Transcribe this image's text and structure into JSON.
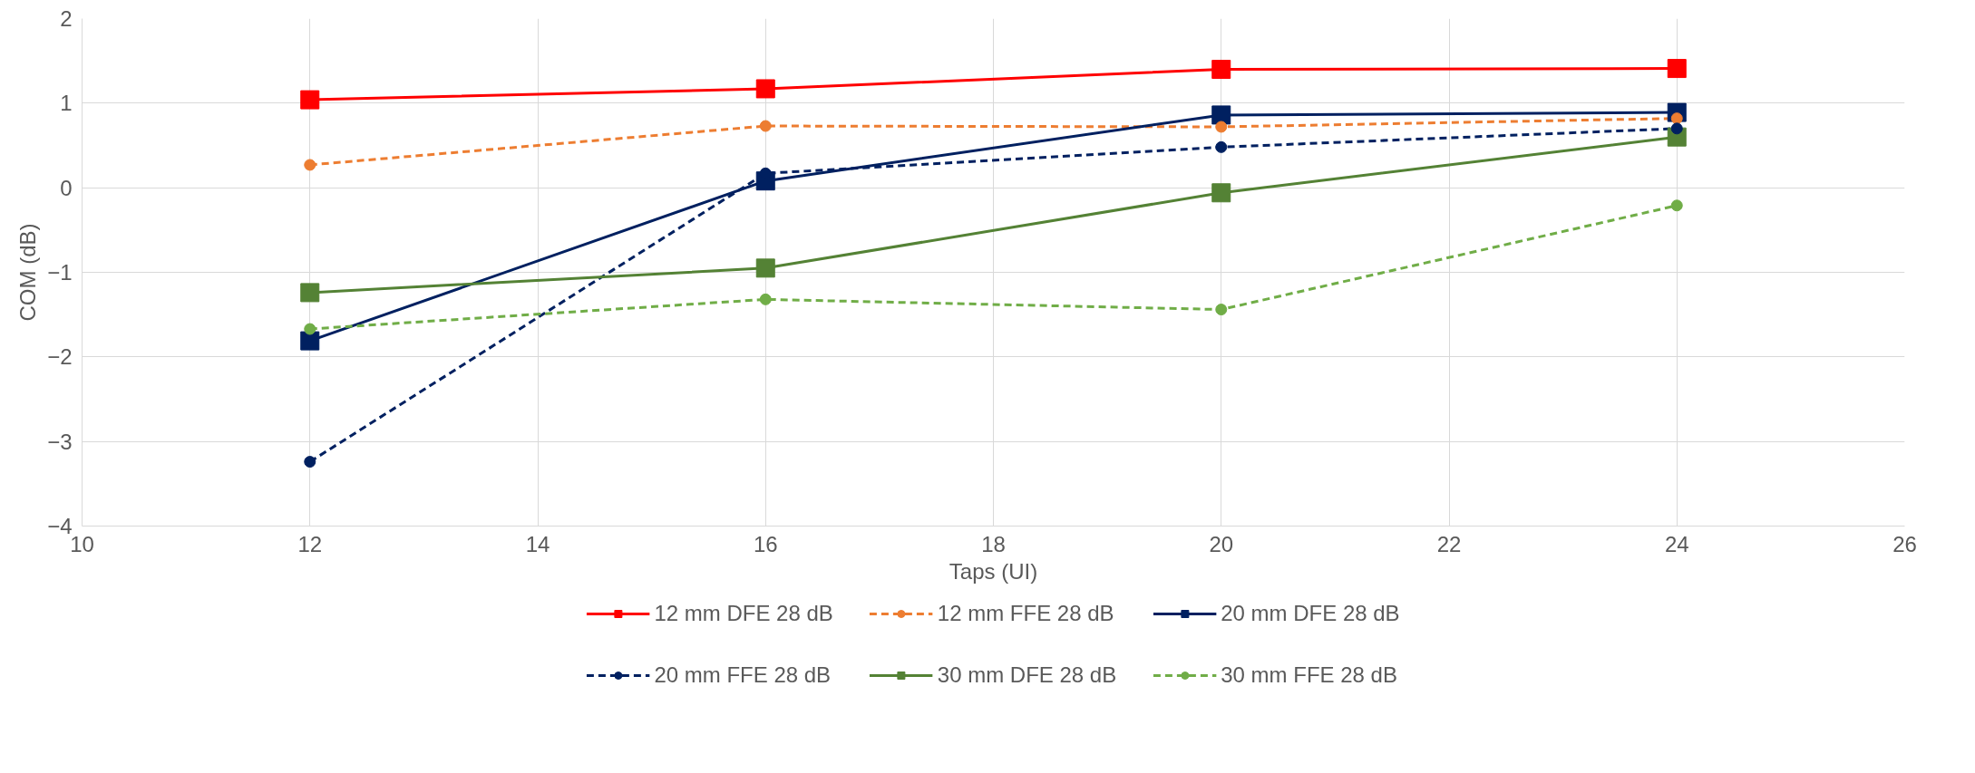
{
  "chart_data": {
    "type": "line",
    "xlabel": "Taps (UI)",
    "ylabel": "COM (dB)",
    "x": [
      12,
      16,
      20,
      24
    ],
    "xlim": [
      10,
      26
    ],
    "xticks": [
      10,
      12,
      14,
      16,
      18,
      20,
      22,
      24,
      26
    ],
    "ylim": [
      -4,
      2
    ],
    "yticks": [
      -4,
      -3,
      -2,
      -1,
      0,
      1,
      2
    ],
    "grid": true,
    "legend": "bottom",
    "series": [
      {
        "name": "12 mm DFE 28 dB",
        "color": "#ff0000",
        "values": [
          1.04,
          1.17,
          1.4,
          1.41
        ],
        "marker": "square",
        "line_style": "solid"
      },
      {
        "name": "12 mm FFE 28 dB",
        "color": "#ed7d31",
        "values": [
          0.27,
          0.73,
          0.72,
          0.82
        ],
        "marker": "circle",
        "line_style": "dashed"
      },
      {
        "name": "20 mm DFE 28 dB",
        "color": "#002060",
        "values": [
          -1.81,
          0.08,
          0.86,
          0.89
        ],
        "marker": "square",
        "line_style": "solid"
      },
      {
        "name": "20 mm FFE 28 dB",
        "color": "#002060",
        "values": [
          -3.24,
          0.17,
          0.48,
          0.7
        ],
        "marker": "circle",
        "line_style": "dashed"
      },
      {
        "name": "30 mm DFE 28 dB",
        "color": "#548235",
        "values": [
          -1.24,
          -0.95,
          -0.06,
          0.6
        ],
        "marker": "square",
        "line_style": "solid"
      },
      {
        "name": "30 mm FFE 28 dB",
        "color": "#70ad47",
        "values": [
          -1.67,
          -1.32,
          -1.44,
          -0.21
        ],
        "marker": "circle",
        "line_style": "dashed"
      }
    ]
  }
}
